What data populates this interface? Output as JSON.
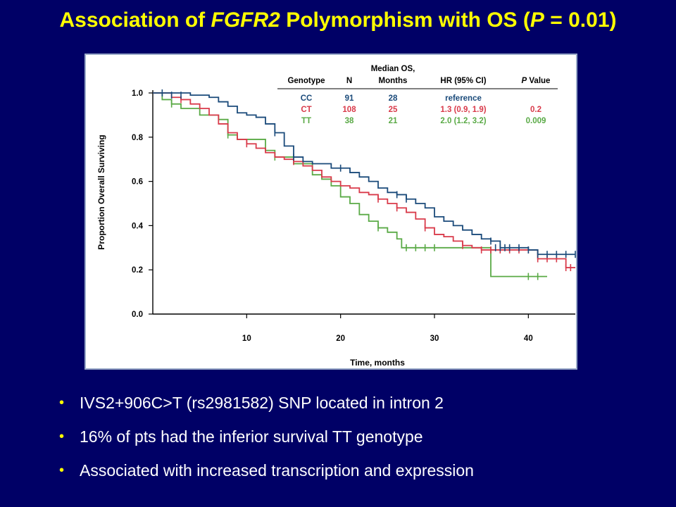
{
  "title": {
    "prefix": "Association of ",
    "gene": "FGFR2",
    "middle": " Polymorphism with OS (",
    "p_symbol": "P",
    "suffix": " = 0.01)"
  },
  "bullets": [
    "IVS2+906C>T (rs2981582) SNP located in intron 2",
    "16% of pts had the inferior survival TT genotype",
    "Associated with increased transcription and expression"
  ],
  "colors": {
    "background": "#000066",
    "title": "#ffff00",
    "bullet_text": "#ffffff",
    "CC": "#1a4a7a",
    "CT": "#d93a4a",
    "TT": "#5aaa46"
  },
  "chart_data": {
    "type": "line",
    "step": true,
    "xlabel": "Time, months",
    "ylabel": "Proportion Overall Surviving",
    "xlim": [
      0,
      45
    ],
    "ylim": [
      0,
      1
    ],
    "x_ticks": [
      10,
      20,
      30,
      40
    ],
    "y_ticks": [
      "0.0",
      "0.2",
      "0.4",
      "0.6",
      "0.8",
      "1.0"
    ],
    "grid": false,
    "legend_table": {
      "headers": [
        "Genotype",
        "N",
        "Median OS, Months",
        "HR (95% CI)",
        "P Value"
      ],
      "header_lines": {
        "median_line1": "Median OS,",
        "median_line2": "Months"
      },
      "rows": [
        {
          "genotype": "CC",
          "n": "91",
          "median": "28",
          "hr": "reference",
          "p": ""
        },
        {
          "genotype": "CT",
          "n": "108",
          "median": "25",
          "hr": "1.3 (0.9, 1.9)",
          "p": "0.2"
        },
        {
          "genotype": "TT",
          "n": "38",
          "median": "21",
          "hr": "2.0 (1.2, 3.2)",
          "p": "0.009"
        }
      ]
    },
    "series": [
      {
        "name": "CC",
        "color": "#1a4a7a",
        "points": [
          [
            0,
            1.0
          ],
          [
            4,
            0.99
          ],
          [
            6,
            0.98
          ],
          [
            7,
            0.96
          ],
          [
            8,
            0.94
          ],
          [
            9,
            0.91
          ],
          [
            10,
            0.9
          ],
          [
            11,
            0.89
          ],
          [
            12,
            0.86
          ],
          [
            13,
            0.82
          ],
          [
            14,
            0.76
          ],
          [
            15,
            0.71
          ],
          [
            16,
            0.69
          ],
          [
            17,
            0.68
          ],
          [
            19,
            0.66
          ],
          [
            20,
            0.66
          ],
          [
            21,
            0.64
          ],
          [
            22,
            0.62
          ],
          [
            23,
            0.6
          ],
          [
            24,
            0.57
          ],
          [
            25,
            0.55
          ],
          [
            26,
            0.54
          ],
          [
            27,
            0.52
          ],
          [
            28,
            0.5
          ],
          [
            29,
            0.48
          ],
          [
            30,
            0.44
          ],
          [
            31,
            0.42
          ],
          [
            32,
            0.4
          ],
          [
            33,
            0.38
          ],
          [
            34,
            0.36
          ],
          [
            35,
            0.34
          ],
          [
            36,
            0.33
          ],
          [
            37,
            0.3
          ],
          [
            38,
            0.3
          ],
          [
            40,
            0.29
          ],
          [
            41,
            0.27
          ],
          [
            45,
            0.27
          ]
        ],
        "censored": [
          [
            1,
            1.0
          ],
          [
            2,
            0.99
          ],
          [
            3,
            0.99
          ],
          [
            13,
            0.82
          ],
          [
            15,
            0.71
          ],
          [
            20,
            0.66
          ],
          [
            26,
            0.54
          ],
          [
            27,
            0.52
          ],
          [
            36,
            0.33
          ],
          [
            36.5,
            0.3
          ],
          [
            37,
            0.3
          ],
          [
            37.5,
            0.3
          ],
          [
            38,
            0.3
          ],
          [
            39,
            0.3
          ],
          [
            40,
            0.29
          ],
          [
            41,
            0.27
          ],
          [
            42,
            0.27
          ],
          [
            43,
            0.27
          ],
          [
            44,
            0.27
          ],
          [
            45,
            0.27
          ]
        ]
      },
      {
        "name": "CT",
        "color": "#d93a4a",
        "points": [
          [
            0,
            1.0
          ],
          [
            2,
            0.98
          ],
          [
            3,
            0.97
          ],
          [
            4,
            0.95
          ],
          [
            5,
            0.93
          ],
          [
            6,
            0.9
          ],
          [
            7,
            0.86
          ],
          [
            8,
            0.82
          ],
          [
            9,
            0.79
          ],
          [
            10,
            0.77
          ],
          [
            11,
            0.75
          ],
          [
            12,
            0.73
          ],
          [
            13,
            0.71
          ],
          [
            14,
            0.7
          ],
          [
            15,
            0.69
          ],
          [
            16,
            0.67
          ],
          [
            17,
            0.65
          ],
          [
            18,
            0.62
          ],
          [
            19,
            0.6
          ],
          [
            20,
            0.58
          ],
          [
            21,
            0.57
          ],
          [
            22,
            0.55
          ],
          [
            23,
            0.54
          ],
          [
            24,
            0.52
          ],
          [
            25,
            0.5
          ],
          [
            26,
            0.48
          ],
          [
            27,
            0.46
          ],
          [
            28,
            0.43
          ],
          [
            29,
            0.39
          ],
          [
            30,
            0.36
          ],
          [
            31,
            0.35
          ],
          [
            32,
            0.33
          ],
          [
            33,
            0.31
          ],
          [
            34,
            0.3
          ],
          [
            35,
            0.29
          ],
          [
            40,
            0.29
          ],
          [
            41,
            0.25
          ],
          [
            43,
            0.25
          ],
          [
            44,
            0.21
          ],
          [
            45,
            0.21
          ]
        ],
        "censored": [
          [
            3,
            0.97
          ],
          [
            10,
            0.77
          ],
          [
            15,
            0.69
          ],
          [
            24,
            0.52
          ],
          [
            26,
            0.48
          ],
          [
            29,
            0.39
          ],
          [
            33,
            0.31
          ],
          [
            35,
            0.29
          ],
          [
            36,
            0.29
          ],
          [
            37,
            0.29
          ],
          [
            38,
            0.29
          ],
          [
            39,
            0.29
          ],
          [
            40,
            0.29
          ],
          [
            41,
            0.25
          ],
          [
            42,
            0.25
          ],
          [
            43,
            0.25
          ],
          [
            44,
            0.21
          ],
          [
            44.5,
            0.21
          ]
        ]
      },
      {
        "name": "TT",
        "color": "#5aaa46",
        "points": [
          [
            0,
            1.0
          ],
          [
            1,
            0.97
          ],
          [
            2,
            0.95
          ],
          [
            3,
            0.93
          ],
          [
            5,
            0.9
          ],
          [
            7,
            0.88
          ],
          [
            8,
            0.81
          ],
          [
            9,
            0.79
          ],
          [
            12,
            0.74
          ],
          [
            13,
            0.71
          ],
          [
            15,
            0.68
          ],
          [
            17,
            0.63
          ],
          [
            18,
            0.61
          ],
          [
            19,
            0.58
          ],
          [
            20,
            0.53
          ],
          [
            21,
            0.5
          ],
          [
            22,
            0.45
          ],
          [
            23,
            0.42
          ],
          [
            24,
            0.39
          ],
          [
            25,
            0.37
          ],
          [
            26,
            0.34
          ],
          [
            26.5,
            0.3
          ],
          [
            35,
            0.3
          ],
          [
            36,
            0.17
          ],
          [
            42,
            0.17
          ]
        ],
        "censored": [
          [
            2,
            0.95
          ],
          [
            8,
            0.81
          ],
          [
            13,
            0.71
          ],
          [
            24,
            0.39
          ],
          [
            27,
            0.3
          ],
          [
            28,
            0.3
          ],
          [
            29,
            0.3
          ],
          [
            30,
            0.3
          ],
          [
            40,
            0.17
          ],
          [
            41,
            0.17
          ]
        ]
      }
    ]
  }
}
